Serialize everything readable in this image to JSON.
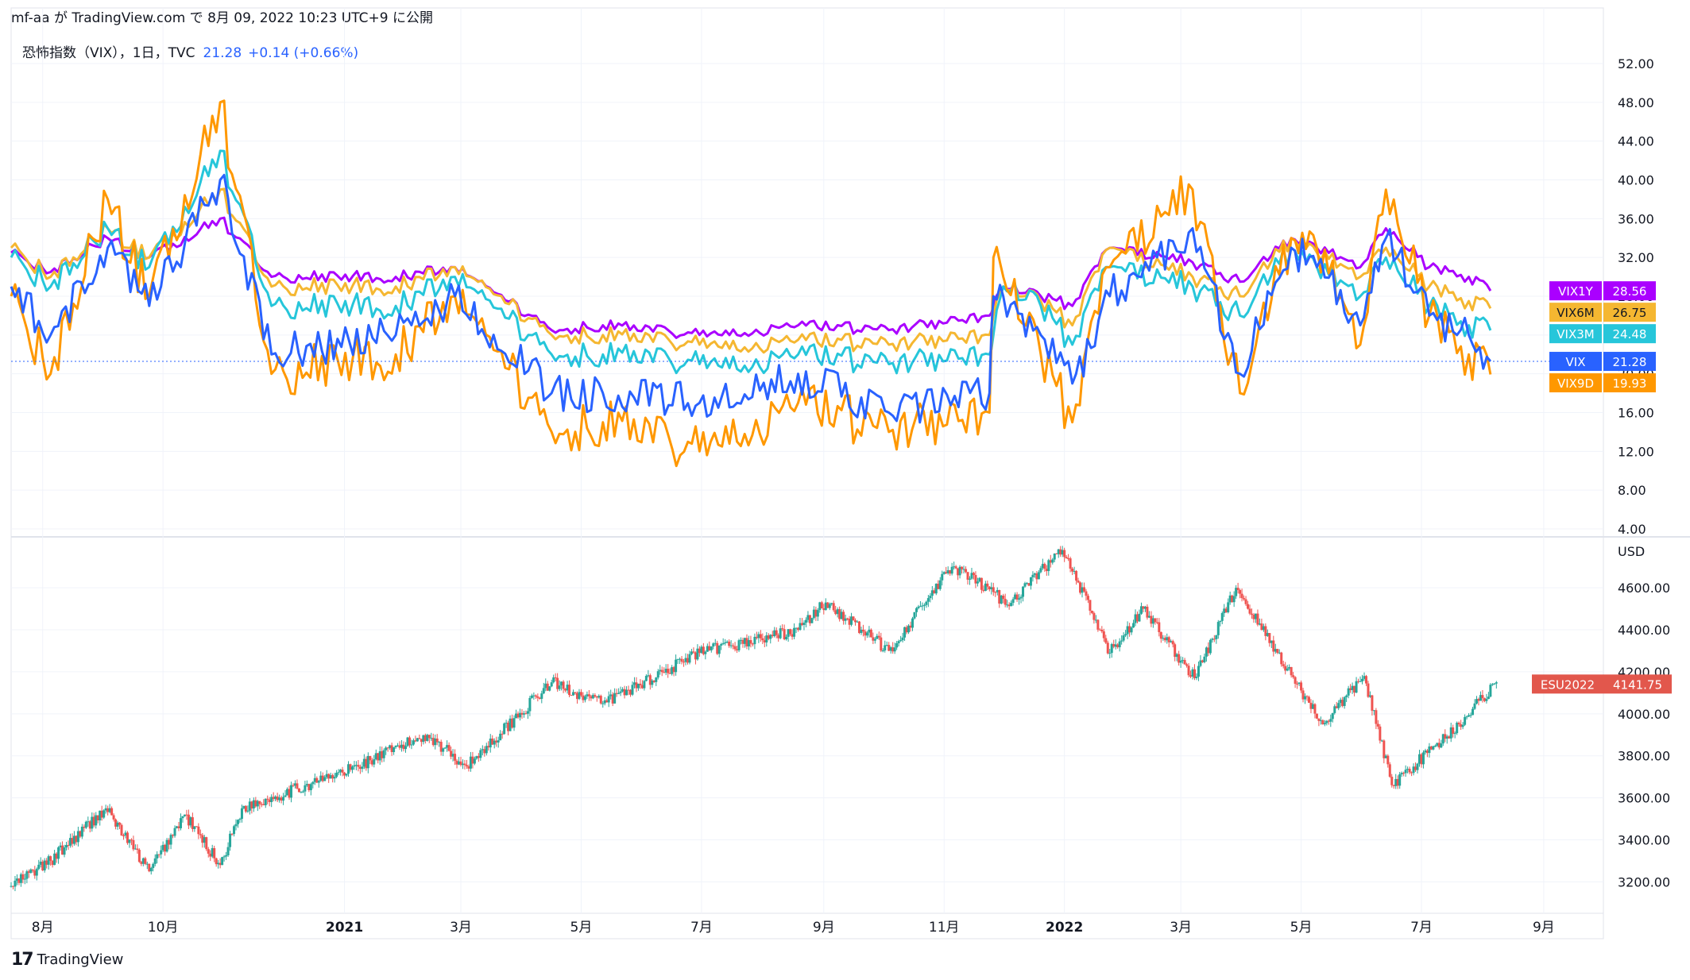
{
  "header": {
    "publish_line": "mf-aa が TradingView.com で 8月 09, 2022 10:23 UTC+9 に公開"
  },
  "legend": {
    "symbol_text": "恐怖指数（VIX），1日，TVC",
    "last": "21.28",
    "change": "+0.14 (+0.66%)"
  },
  "footer": {
    "brand": "TradingView"
  },
  "colors": {
    "VIX": "#2962ff",
    "VIX9D": "#ff9800",
    "VIX3M": "#26c6da",
    "VIX6M": "#f5b731",
    "VIX1Y": "#aa00ff",
    "candle_up": "#26a69a",
    "candle_down": "#ef5350",
    "esu_label": "#e2574c",
    "grid": "#f0f3fa"
  },
  "chart_data": [
    {
      "type": "line",
      "title": "恐怖指数（VIX），1日，TVC",
      "x": [
        "2020-07-16",
        "2020-08-05",
        "2020-09-03",
        "2020-09-24",
        "2020-10-30",
        "2020-11-25",
        "2021-01-27",
        "2021-02-26",
        "2021-04-16",
        "2021-05-12",
        "2021-06-30",
        "2021-07-19",
        "2021-08-19",
        "2021-10-04",
        "2021-11-24",
        "2021-11-26",
        "2021-12-01",
        "2021-12-20",
        "2022-01-05",
        "2022-01-24",
        "2022-03-07",
        "2022-03-31",
        "2022-04-26",
        "2022-05-09",
        "2022-05-31",
        "2022-06-13",
        "2022-07-05",
        "2022-07-25",
        "2022-08-05"
      ],
      "series": [
        {
          "name": "VIX1Y",
          "values": [
            32.5,
            30.5,
            34,
            32,
            36,
            30,
            30,
            31,
            24.5,
            25,
            24,
            24,
            25,
            24.5,
            26,
            27,
            29,
            28,
            27,
            33,
            31.5,
            29.5,
            34,
            33,
            31,
            35,
            31,
            30,
            28.56
          ]
        },
        {
          "name": "VIX6M",
          "values": [
            33,
            30,
            35,
            32,
            39,
            29,
            29,
            31,
            24,
            24,
            23,
            22.5,
            23.5,
            23,
            24,
            26,
            29,
            27.5,
            25,
            33,
            30,
            28,
            34,
            32.5,
            30,
            33,
            29,
            27.5,
            26.75
          ]
        },
        {
          "name": "VIX3M",
          "values": [
            32,
            29,
            35,
            31,
            43,
            27,
            27,
            30,
            22,
            22,
            21,
            20.5,
            22,
            21,
            22,
            24,
            29,
            27,
            23,
            31,
            29,
            26,
            33,
            31,
            28,
            32,
            27,
            25,
            24.48
          ]
        },
        {
          "name": "VIX",
          "values": [
            29,
            24,
            33,
            27,
            40,
            22,
            24,
            28,
            18,
            18,
            17,
            17,
            20,
            16,
            18,
            28,
            28,
            24,
            19,
            28,
            35,
            20,
            33,
            31,
            25,
            34,
            26,
            24,
            21.28
          ]
        },
        {
          "name": "VIX9D",
          "values": [
            28,
            20,
            38,
            28,
            48,
            20,
            22,
            28,
            14,
            15,
            12,
            13,
            17,
            14,
            16,
            32,
            30,
            22,
            15,
            31,
            39,
            18,
            34,
            33,
            23,
            39,
            26,
            22,
            19.93
          ]
        }
      ],
      "last_labels": [
        {
          "name": "VIX1Y",
          "value": "28.56"
        },
        {
          "name": "VIX6M",
          "value": "26.75"
        },
        {
          "name": "VIX3M",
          "value": "24.48"
        },
        {
          "name": "VIX",
          "value": "21.28"
        },
        {
          "name": "VIX9D",
          "value": "19.93"
        }
      ],
      "ylim": [
        4,
        52
      ],
      "yticks": [
        "52.00",
        "48.00",
        "44.00",
        "40.00",
        "36.00",
        "32.00",
        "28.00",
        "24.00",
        "20.00",
        "16.00",
        "12.00",
        "8.00",
        "4.00"
      ],
      "grid": true
    },
    {
      "type": "candlestick",
      "name": "ESU2022",
      "last": "4141.75",
      "unit": "USD",
      "x": [
        "2020-07-16",
        "2020-08-05",
        "2020-09-02",
        "2020-09-24",
        "2020-10-12",
        "2020-10-30",
        "2020-11-10",
        "2020-12-31",
        "2021-02-12",
        "2021-03-04",
        "2021-04-16",
        "2021-05-12",
        "2021-06-30",
        "2021-08-19",
        "2021-09-02",
        "2021-10-04",
        "2021-11-05",
        "2021-11-26",
        "2021-12-03",
        "2021-12-31",
        "2022-01-24",
        "2022-02-10",
        "2022-03-08",
        "2022-03-29",
        "2022-05-12",
        "2022-06-02",
        "2022-06-16",
        "2022-07-06",
        "2022-07-20",
        "2022-08-08"
      ],
      "close": [
        3180,
        3300,
        3550,
        3250,
        3520,
        3280,
        3550,
        3720,
        3900,
        3750,
        4150,
        4050,
        4290,
        4400,
        4530,
        4300,
        4700,
        4580,
        4520,
        4780,
        4290,
        4500,
        4170,
        4600,
        3950,
        4180,
        3660,
        3830,
        3950,
        4150
      ],
      "ylim": [
        3050,
        4820
      ],
      "yticks": [
        "4600.00",
        "4400.00",
        "4200.00",
        "4000.00",
        "3800.00",
        "3600.00",
        "3400.00",
        "3200.00"
      ],
      "grid": true
    }
  ],
  "xaxis": {
    "ticks": [
      {
        "label": "8月",
        "date": "2020-08-01",
        "bold": false
      },
      {
        "label": "10月",
        "date": "2020-10-01",
        "bold": false
      },
      {
        "label": "2021",
        "date": "2021-01-01",
        "bold": true
      },
      {
        "label": "3月",
        "date": "2021-03-01",
        "bold": false
      },
      {
        "label": "5月",
        "date": "2021-05-01",
        "bold": false
      },
      {
        "label": "7月",
        "date": "2021-07-01",
        "bold": false
      },
      {
        "label": "9月",
        "date": "2021-09-01",
        "bold": false
      },
      {
        "label": "11月",
        "date": "2021-11-01",
        "bold": false
      },
      {
        "label": "2022",
        "date": "2022-01-01",
        "bold": true
      },
      {
        "label": "3月",
        "date": "2022-03-01",
        "bold": false
      },
      {
        "label": "5月",
        "date": "2022-05-01",
        "bold": false
      },
      {
        "label": "7月",
        "date": "2022-07-01",
        "bold": false
      },
      {
        "label": "9月",
        "date": "2022-09-01",
        "bold": false
      }
    ]
  }
}
